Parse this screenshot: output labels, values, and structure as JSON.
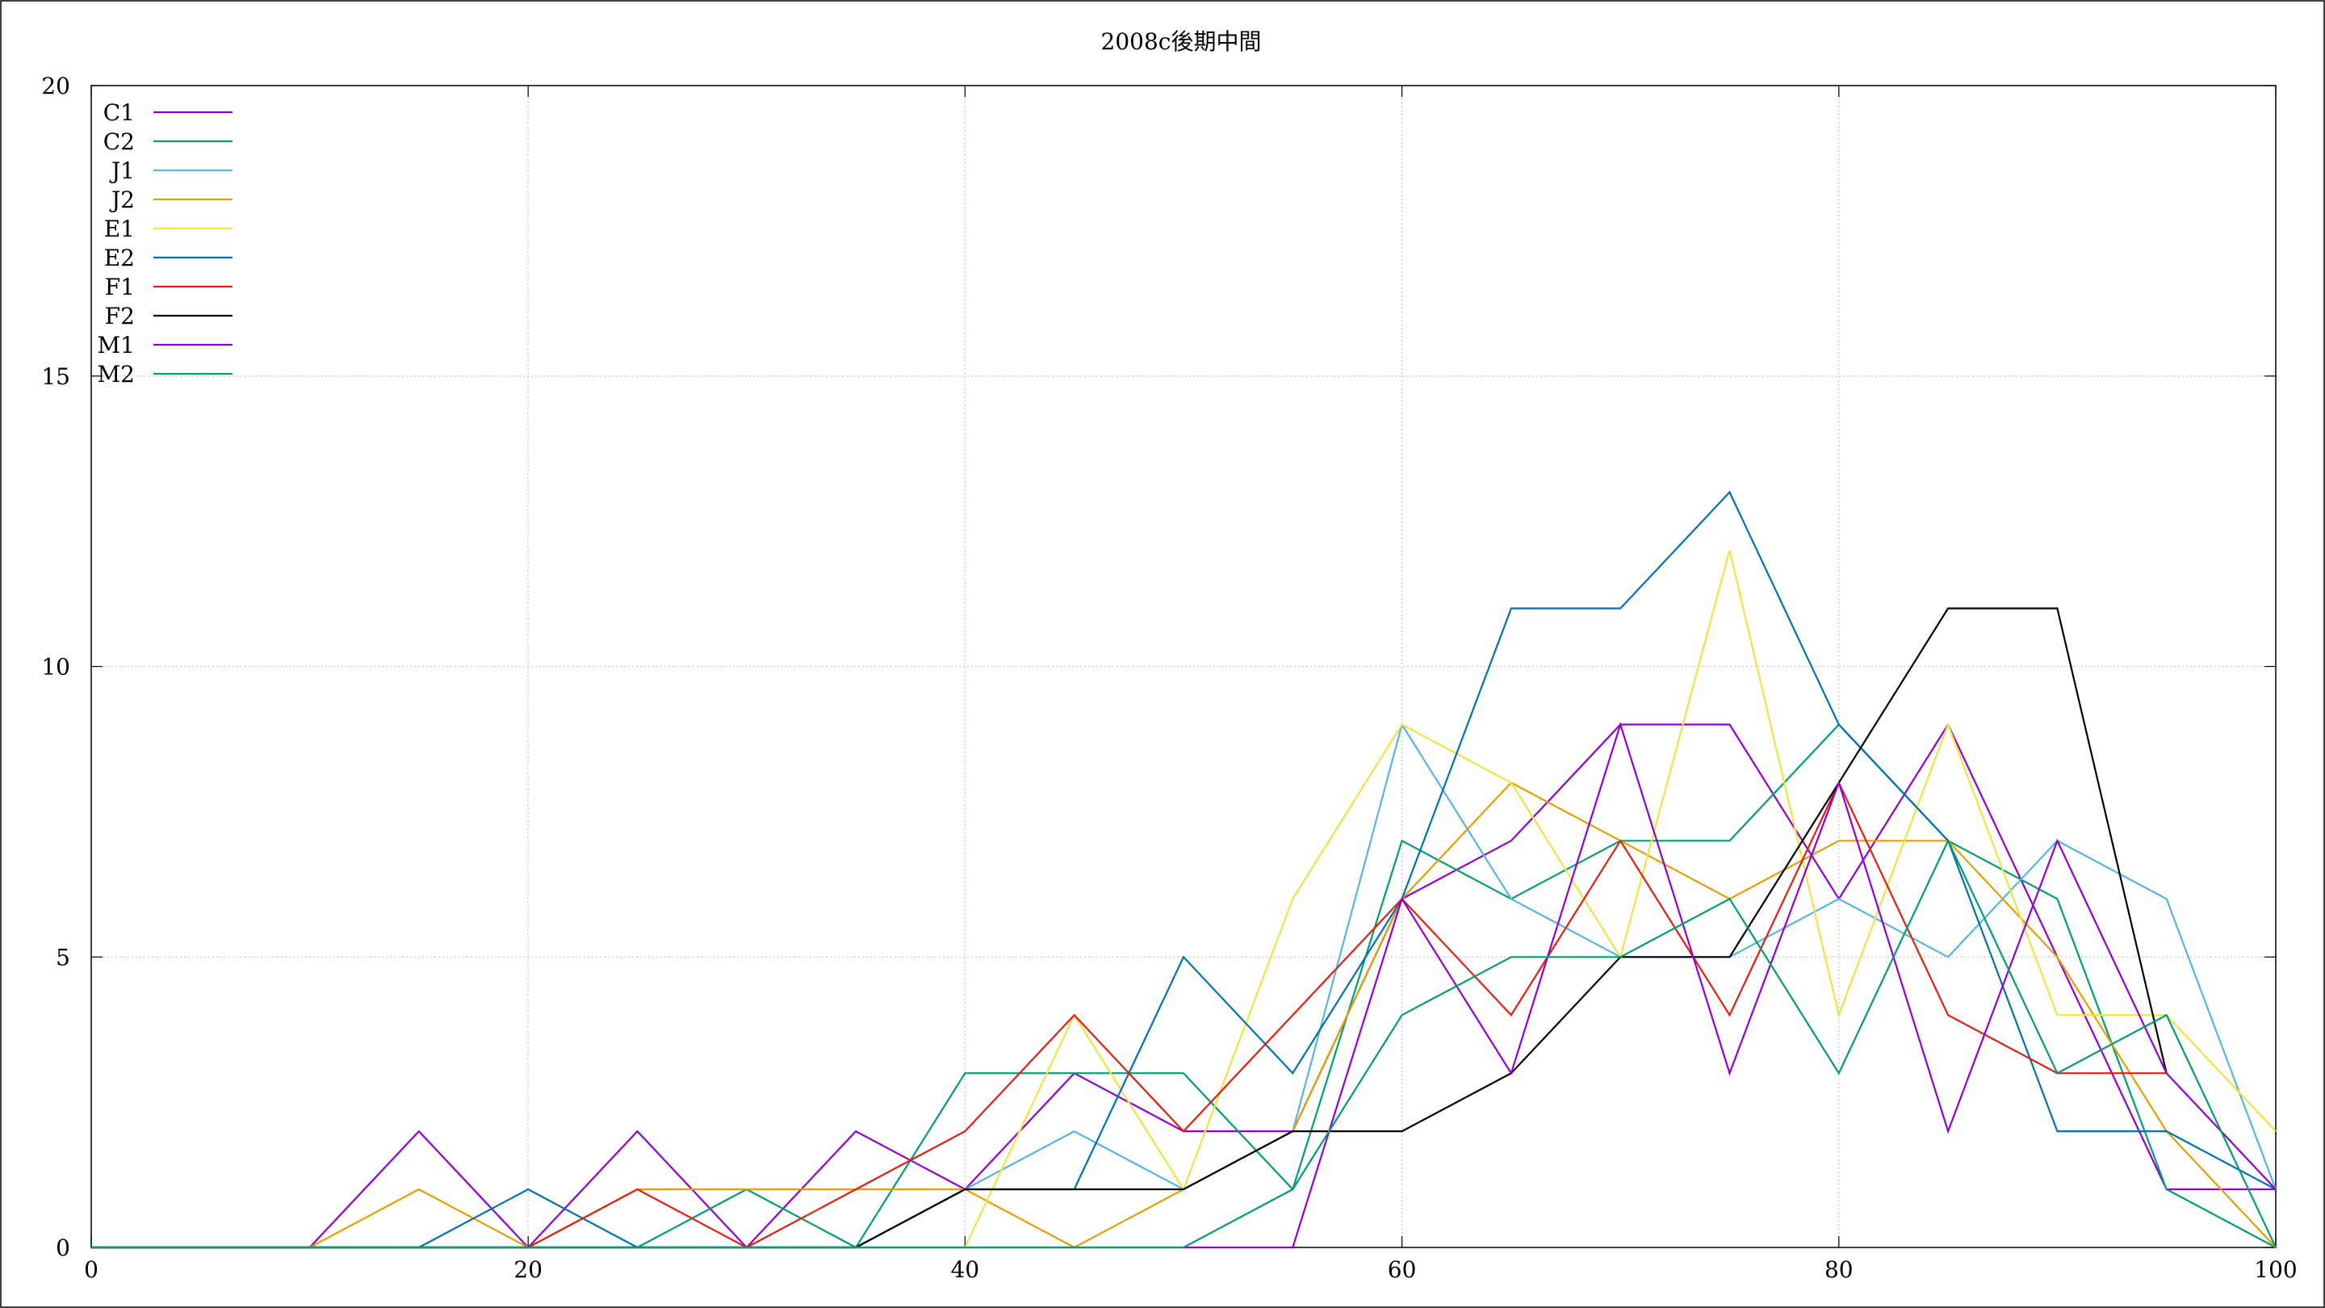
{
  "chart_data": {
    "type": "line",
    "title": "2008c後期中間",
    "xlabel": "",
    "ylabel": "",
    "xlim": [
      0,
      100
    ],
    "ylim": [
      0,
      20
    ],
    "xticks": [
      0,
      20,
      40,
      60,
      80,
      100
    ],
    "yticks": [
      0,
      5,
      10,
      15,
      20
    ],
    "grid": true,
    "legend_position": "top-left",
    "x": [
      0,
      5,
      10,
      15,
      20,
      25,
      30,
      35,
      40,
      45,
      50,
      55,
      60,
      65,
      70,
      75,
      80,
      85,
      90,
      95,
      100
    ],
    "series": [
      {
        "name": "C1",
        "color": "#9400d3",
        "values": [
          0,
          0,
          0,
          2,
          0,
          2,
          0,
          2,
          1,
          3,
          2,
          2,
          6,
          7,
          9,
          9,
          6,
          9,
          5,
          1,
          1
        ]
      },
      {
        "name": "C2",
        "color": "#009e73",
        "values": [
          0,
          0,
          0,
          0,
          0,
          0,
          1,
          0,
          3,
          3,
          3,
          1,
          7,
          6,
          7,
          7,
          9,
          7,
          6,
          1,
          0
        ]
      },
      {
        "name": "J1",
        "color": "#56b4e9",
        "values": [
          0,
          0,
          0,
          0,
          0,
          0,
          0,
          0,
          1,
          2,
          1,
          2,
          9,
          6,
          5,
          5,
          6,
          5,
          7,
          6,
          1
        ]
      },
      {
        "name": "J2",
        "color": "#e69f00",
        "values": [
          0,
          0,
          0,
          1,
          0,
          1,
          1,
          1,
          1,
          0,
          1,
          2,
          6,
          8,
          7,
          6,
          7,
          7,
          5,
          2,
          0
        ]
      },
      {
        "name": "E1",
        "color": "#f0e442",
        "values": [
          0,
          0,
          0,
          0,
          0,
          0,
          0,
          0,
          0,
          4,
          1,
          6,
          9,
          8,
          5,
          12,
          4,
          9,
          4,
          4,
          2
        ]
      },
      {
        "name": "E2",
        "color": "#0072b2",
        "values": [
          0,
          0,
          0,
          0,
          1,
          0,
          0,
          0,
          1,
          1,
          5,
          3,
          6,
          11,
          11,
          13,
          9,
          7,
          2,
          2,
          1
        ]
      },
      {
        "name": "F1",
        "color": "#e51e10",
        "values": [
          0,
          0,
          0,
          0,
          0,
          1,
          0,
          1,
          2,
          4,
          2,
          4,
          6,
          4,
          7,
          4,
          8,
          4,
          3,
          3,
          null
        ]
      },
      {
        "name": "F2",
        "color": "#000000",
        "values": [
          0,
          0,
          0,
          0,
          0,
          0,
          0,
          0,
          1,
          1,
          1,
          2,
          2,
          3,
          5,
          5,
          8,
          11,
          11,
          3,
          null
        ]
      },
      {
        "name": "M1",
        "color": "#9400d3",
        "values": [
          0,
          0,
          0,
          0,
          0,
          0,
          0,
          0,
          0,
          0,
          0,
          0,
          6,
          3,
          9,
          3,
          8,
          2,
          7,
          3,
          1
        ]
      },
      {
        "name": "M2",
        "color": "#009e73",
        "values": [
          0,
          0,
          0,
          0,
          0,
          0,
          0,
          0,
          0,
          0,
          0,
          1,
          4,
          5,
          5,
          6,
          3,
          7,
          3,
          4,
          0
        ]
      }
    ]
  }
}
